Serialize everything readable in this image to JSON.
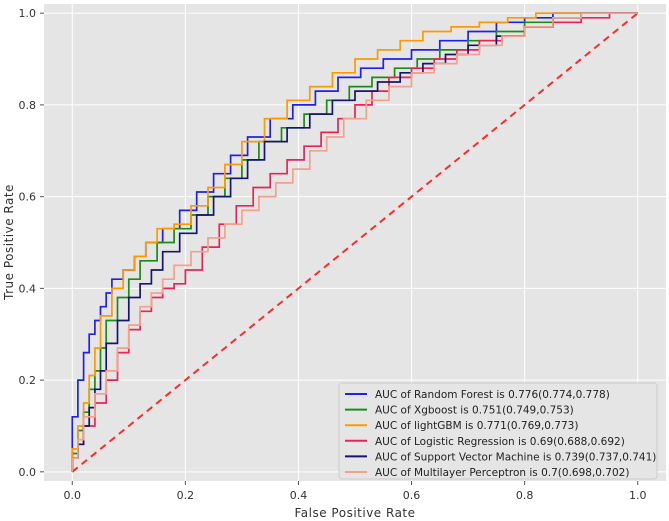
{
  "chart_data": {
    "type": "line",
    "title": "",
    "xlabel": "False Positive Rate",
    "ylabel": "True Positive Rate",
    "xlim": [
      -0.05,
      1.05
    ],
    "ylim": [
      -0.02,
      1.02
    ],
    "xticks": [
      0.0,
      0.2,
      0.4,
      0.6,
      0.8,
      1.0
    ],
    "yticks": [
      0.0,
      0.2,
      0.4,
      0.6,
      0.8,
      1.0
    ],
    "xtick_labels": [
      "0.0",
      "0.2",
      "0.4",
      "0.6",
      "0.8",
      "1.0"
    ],
    "ytick_labels": [
      "0.0",
      "0.2",
      "0.4",
      "0.6",
      "0.8",
      "1.0"
    ],
    "grid": true,
    "legend_position": "bottom-right",
    "background": "#e5e5e5",
    "diagonal": {
      "x": [
        0,
        1
      ],
      "y": [
        0,
        1
      ],
      "color": "#ff2a2a",
      "style": "dashed"
    },
    "series": [
      {
        "name": "AUC of Random Forest is 0.776(0.774,0.778)",
        "color": "#2020ee",
        "x": [
          0,
          0,
          0.01,
          0.01,
          0.02,
          0.03,
          0.04,
          0.05,
          0.06,
          0.07,
          0.09,
          0.11,
          0.13,
          0.16,
          0.19,
          0.22,
          0.25,
          0.28,
          0.31,
          0.35,
          0.39,
          0.43,
          0.47,
          0.51,
          0.55,
          0.6,
          0.65,
          0.7,
          0.75,
          0.8,
          0.85,
          0.9,
          0.95,
          1.0
        ],
        "y": [
          0,
          0.05,
          0.12,
          0.16,
          0.2,
          0.26,
          0.3,
          0.33,
          0.36,
          0.39,
          0.42,
          0.44,
          0.47,
          0.5,
          0.53,
          0.57,
          0.61,
          0.65,
          0.69,
          0.73,
          0.77,
          0.8,
          0.83,
          0.86,
          0.88,
          0.9,
          0.92,
          0.94,
          0.96,
          0.98,
          0.99,
          1.0,
          1.0,
          1.0
        ]
      },
      {
        "name": "AUC of Xgboost is 0.751(0.749,0.753)",
        "color": "#1a8c1a",
        "x": [
          0,
          0.01,
          0.02,
          0.03,
          0.04,
          0.05,
          0.06,
          0.08,
          0.1,
          0.12,
          0.15,
          0.18,
          0.21,
          0.24,
          0.27,
          0.3,
          0.33,
          0.37,
          0.41,
          0.45,
          0.49,
          0.53,
          0.57,
          0.61,
          0.65,
          0.7,
          0.75,
          0.8,
          0.85,
          0.9,
          0.95,
          1.0
        ],
        "y": [
          0,
          0.04,
          0.09,
          0.13,
          0.18,
          0.22,
          0.27,
          0.33,
          0.38,
          0.42,
          0.46,
          0.5,
          0.53,
          0.56,
          0.6,
          0.64,
          0.68,
          0.72,
          0.75,
          0.78,
          0.81,
          0.84,
          0.86,
          0.88,
          0.9,
          0.92,
          0.94,
          0.96,
          0.98,
          0.99,
          1.0,
          1.0
        ]
      },
      {
        "name": "AUC of lightGBM is 0.771(0.769,0.773)",
        "color": "#ff9900",
        "x": [
          0,
          0.01,
          0.02,
          0.03,
          0.04,
          0.05,
          0.07,
          0.09,
          0.11,
          0.13,
          0.15,
          0.18,
          0.21,
          0.24,
          0.27,
          0.3,
          0.34,
          0.38,
          0.42,
          0.46,
          0.5,
          0.54,
          0.58,
          0.62,
          0.67,
          0.72,
          0.77,
          0.82,
          0.88,
          0.94,
          1.0
        ],
        "y": [
          0,
          0.05,
          0.1,
          0.15,
          0.21,
          0.27,
          0.34,
          0.4,
          0.44,
          0.47,
          0.5,
          0.53,
          0.54,
          0.58,
          0.62,
          0.67,
          0.72,
          0.77,
          0.81,
          0.84,
          0.87,
          0.9,
          0.92,
          0.94,
          0.96,
          0.97,
          0.98,
          0.99,
          1.0,
          1.0,
          1.0
        ]
      },
      {
        "name": "AUC of Logistic Regression is 0.69(0.688,0.692)",
        "color": "#ee2255",
        "x": [
          0,
          0.01,
          0.02,
          0.04,
          0.06,
          0.08,
          0.1,
          0.12,
          0.14,
          0.16,
          0.18,
          0.2,
          0.23,
          0.26,
          0.29,
          0.32,
          0.35,
          0.38,
          0.41,
          0.44,
          0.47,
          0.5,
          0.53,
          0.56,
          0.6,
          0.64,
          0.68,
          0.72,
          0.76,
          0.8,
          0.85,
          0.9,
          0.95,
          1.0
        ],
        "y": [
          0,
          0.03,
          0.06,
          0.1,
          0.15,
          0.2,
          0.26,
          0.31,
          0.35,
          0.38,
          0.4,
          0.41,
          0.44,
          0.49,
          0.54,
          0.58,
          0.62,
          0.65,
          0.68,
          0.71,
          0.74,
          0.77,
          0.8,
          0.83,
          0.86,
          0.88,
          0.9,
          0.92,
          0.94,
          0.95,
          0.97,
          0.98,
          0.99,
          1.0
        ]
      },
      {
        "name": "AUC of Support Vector Machine is 0.739(0.737,0.741)",
        "color": "#161670",
        "x": [
          0,
          0.01,
          0.02,
          0.03,
          0.04,
          0.05,
          0.06,
          0.08,
          0.1,
          0.12,
          0.14,
          0.16,
          0.19,
          0.22,
          0.25,
          0.28,
          0.31,
          0.34,
          0.38,
          0.42,
          0.46,
          0.5,
          0.54,
          0.58,
          0.62,
          0.66,
          0.7,
          0.75,
          0.8,
          0.85,
          0.9,
          0.95,
          1.0
        ],
        "y": [
          0,
          0.03,
          0.06,
          0.1,
          0.14,
          0.18,
          0.22,
          0.28,
          0.33,
          0.38,
          0.41,
          0.44,
          0.48,
          0.52,
          0.56,
          0.6,
          0.64,
          0.68,
          0.72,
          0.75,
          0.78,
          0.81,
          0.83,
          0.85,
          0.87,
          0.89,
          0.91,
          0.93,
          0.95,
          0.97,
          0.99,
          1.0,
          1.0
        ]
      },
      {
        "name": "AUC of Multilayer Perceptron is 0.7(0.698,0.702)",
        "color": "#f4a08a",
        "x": [
          0,
          0.01,
          0.02,
          0.04,
          0.06,
          0.08,
          0.1,
          0.12,
          0.14,
          0.16,
          0.18,
          0.21,
          0.24,
          0.27,
          0.3,
          0.33,
          0.36,
          0.39,
          0.42,
          0.45,
          0.48,
          0.52,
          0.56,
          0.6,
          0.64,
          0.68,
          0.72,
          0.76,
          0.8,
          0.85,
          0.9,
          0.95,
          1.0
        ],
        "y": [
          0,
          0.03,
          0.07,
          0.12,
          0.17,
          0.22,
          0.27,
          0.32,
          0.36,
          0.39,
          0.42,
          0.45,
          0.48,
          0.51,
          0.54,
          0.57,
          0.6,
          0.63,
          0.66,
          0.7,
          0.73,
          0.77,
          0.81,
          0.84,
          0.87,
          0.89,
          0.91,
          0.93,
          0.95,
          0.97,
          0.99,
          1.0,
          1.0
        ]
      }
    ]
  }
}
